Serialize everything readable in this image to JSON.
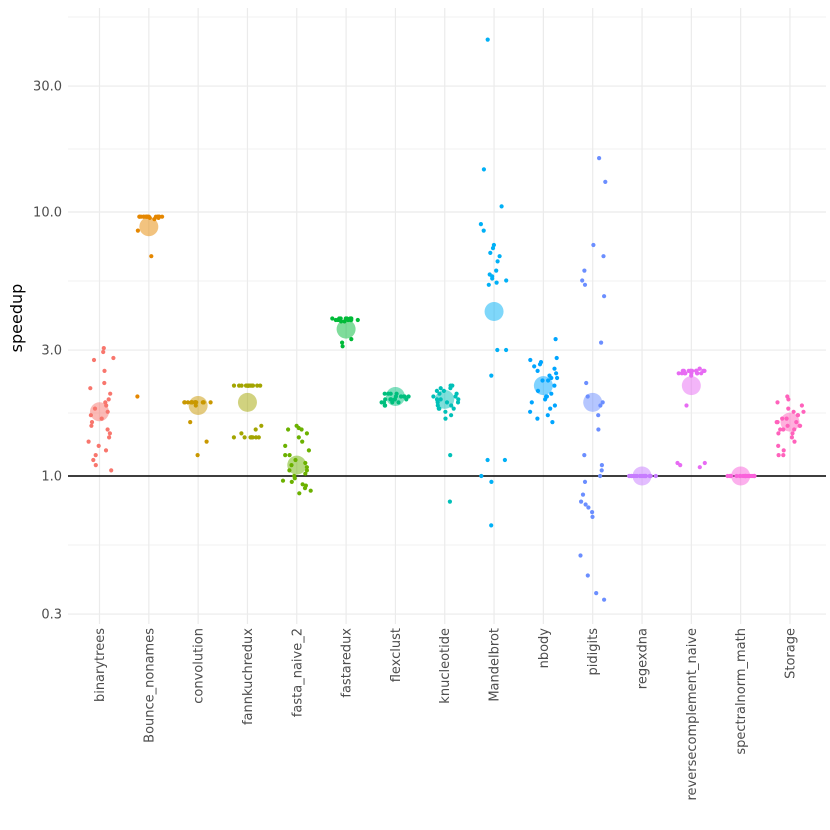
{
  "chart_data": {
    "type": "scatter",
    "title": "",
    "xlabel": "",
    "ylabel": "speedup",
    "y_scale": "log10",
    "ylim": [
      0.3,
      50
    ],
    "y_ticks": [
      0.3,
      1.0,
      3.0,
      10.0,
      30.0
    ],
    "y_tick_labels": [
      "0.3",
      "1.0",
      "3.0",
      "10.0",
      "30.0"
    ],
    "reference_line": 1.0,
    "grid": true,
    "legend": "none",
    "categories": [
      "binarytrees",
      "Bounce_nonames",
      "convolution",
      "fannkuchredux",
      "fasta_naive_2",
      "fastaredux",
      "flexclust",
      "knucleotide",
      "Mandelbrot",
      "nbody",
      "pidigits",
      "regexdna",
      "reversecomplement_naive",
      "spectralnorm_math",
      "Storage"
    ],
    "series": [
      {
        "name": "binarytrees",
        "color": "#F8766D",
        "mean": 1.75,
        "points": [
          3.05,
          2.75,
          2.95,
          2.8,
          2.5,
          2.25,
          2.15,
          2.05,
          1.9,
          1.95,
          1.85,
          1.8,
          1.75,
          1.7,
          1.65,
          1.6,
          1.55,
          1.5,
          1.45,
          1.4,
          1.35,
          1.3,
          1.25,
          1.2,
          1.15,
          1.1,
          1.05
        ]
      },
      {
        "name": "Bounce_nonames",
        "color": "#E58700",
        "mean": 8.8,
        "points": [
          9.6,
          9.6,
          9.6,
          9.6,
          9.6,
          9.6,
          9.6,
          9.6,
          9.6,
          9.6,
          9.6,
          9.6,
          9.6,
          9.6,
          9.6,
          9.6,
          9.6,
          9.5,
          9.5,
          9.4,
          8.5,
          6.8,
          2.0
        ]
      },
      {
        "name": "convolution",
        "color": "#C99800",
        "mean": 1.85,
        "points": [
          1.9,
          1.9,
          1.9,
          1.9,
          1.9,
          1.9,
          1.9,
          1.9,
          1.9,
          1.9,
          1.9,
          1.9,
          1.9,
          1.9,
          1.9,
          1.9,
          1.85,
          1.6,
          1.35,
          1.2
        ]
      },
      {
        "name": "fannkuchredux",
        "color": "#A3A500",
        "mean": 1.9,
        "points": [
          2.2,
          2.2,
          2.2,
          2.2,
          2.2,
          2.2,
          2.2,
          2.2,
          2.2,
          2.2,
          2.2,
          2.2,
          2.2,
          2.2,
          1.4,
          1.4,
          1.4,
          1.4,
          1.4,
          1.4,
          1.4,
          1.4,
          1.45,
          1.5,
          1.55
        ]
      },
      {
        "name": "fasta_naive_2",
        "color": "#6BB100",
        "mean": 1.1,
        "points": [
          1.55,
          1.5,
          1.52,
          1.5,
          1.45,
          1.4,
          1.35,
          1.3,
          1.25,
          1.2,
          1.2,
          1.15,
          1.12,
          1.1,
          1.08,
          1.05,
          1.02,
          1.0,
          0.98,
          0.96,
          0.95,
          0.93,
          0.92,
          0.9,
          0.88,
          0.86,
          1.05
        ]
      },
      {
        "name": "fastaredux",
        "color": "#00BA38",
        "mean": 3.6,
        "points": [
          3.95,
          3.95,
          3.95,
          3.95,
          3.95,
          3.95,
          3.95,
          3.95,
          3.9,
          3.9,
          3.9,
          3.9,
          3.9,
          3.9,
          3.9,
          3.85,
          3.85,
          3.3,
          3.2,
          3.1
        ]
      },
      {
        "name": "flexclust",
        "color": "#00BF7D",
        "mean": 2.0,
        "points": [
          2.05,
          2.05,
          2.05,
          2.05,
          2.0,
          2.0,
          2.0,
          2.0,
          2.0,
          1.95,
          1.95,
          1.95,
          1.95,
          1.95,
          1.95,
          1.9,
          1.9,
          1.9,
          1.9,
          1.85,
          1.85,
          1.85
        ]
      },
      {
        "name": "knucleotide",
        "color": "#00C0B8",
        "mean": 1.95,
        "points": [
          2.2,
          2.2,
          2.15,
          2.15,
          2.1,
          2.1,
          2.05,
          2.05,
          2.0,
          2.0,
          1.95,
          1.95,
          1.95,
          1.9,
          1.9,
          1.9,
          1.85,
          1.85,
          1.8,
          1.8,
          1.8,
          1.75,
          1.7,
          1.65,
          1.2,
          0.8
        ]
      },
      {
        "name": "Mandelbrot",
        "color": "#00B0F6",
        "mean": 4.2,
        "points": [
          45.0,
          14.5,
          10.5,
          9.0,
          8.5,
          7.5,
          7.3,
          7.0,
          6.8,
          6.5,
          6.0,
          5.8,
          5.7,
          5.6,
          5.4,
          5.3,
          5.5,
          3.0,
          3.0,
          2.4,
          1.15,
          1.15,
          1.0,
          0.95,
          0.65
        ]
      },
      {
        "name": "nbody",
        "color": "#00A5FF",
        "mean": 2.2,
        "points": [
          3.3,
          2.8,
          2.75,
          2.7,
          2.65,
          2.6,
          2.55,
          2.5,
          2.45,
          2.4,
          2.35,
          2.35,
          2.3,
          2.3,
          2.2,
          2.1,
          2.05,
          2.0,
          2.0,
          1.95,
          1.9,
          1.85,
          1.8,
          1.75,
          1.7,
          1.65,
          1.6
        ]
      },
      {
        "name": "pidigits",
        "color": "#6B8EFF",
        "mean": 1.9,
        "points": [
          16.0,
          13.0,
          7.5,
          6.8,
          6.0,
          5.5,
          5.3,
          4.8,
          3.2,
          2.25,
          2.0,
          1.9,
          1.85,
          1.7,
          1.5,
          1.2,
          1.1,
          1.05,
          1.0,
          0.95,
          0.85,
          0.8,
          0.78,
          0.76,
          0.73,
          0.7,
          0.5,
          0.42,
          0.36,
          0.34
        ]
      },
      {
        "name": "regexdna",
        "color": "#C77CFF",
        "mean": 1.0,
        "points": [
          1.0,
          1.0,
          1.0,
          1.0,
          1.0,
          1.0,
          1.0,
          1.0,
          1.0,
          1.0,
          1.0,
          1.0,
          1.0,
          1.0,
          1.0,
          1.0,
          1.0,
          1.0,
          1.0,
          1.0
        ]
      },
      {
        "name": "reversecomplement_naive",
        "color": "#E76BF3",
        "mean": 2.2,
        "points": [
          2.55,
          2.55,
          2.5,
          2.5,
          2.5,
          2.5,
          2.5,
          2.5,
          2.5,
          2.5,
          2.5,
          2.5,
          2.5,
          2.45,
          2.45,
          2.45,
          2.45,
          2.45,
          2.45,
          2.45,
          2.45,
          2.4,
          1.85,
          1.12,
          1.1,
          1.12,
          1.08
        ]
      },
      {
        "name": "spectralnorm_math",
        "color": "#FA62DB",
        "mean": 1.0,
        "points": [
          1.0,
          1.0,
          1.0,
          1.0,
          1.0,
          1.0,
          1.0,
          1.0,
          1.0,
          1.0,
          1.0,
          1.0,
          1.0,
          1.0,
          1.0,
          1.0,
          1.0,
          1.0,
          1.0,
          1.0
        ]
      },
      {
        "name": "Storage",
        "color": "#FF62BC",
        "mean": 1.6,
        "points": [
          2.0,
          1.95,
          1.9,
          1.85,
          1.8,
          1.75,
          1.75,
          1.7,
          1.7,
          1.65,
          1.65,
          1.6,
          1.6,
          1.6,
          1.55,
          1.55,
          1.55,
          1.5,
          1.5,
          1.5,
          1.45,
          1.45,
          1.4,
          1.35,
          1.3,
          1.25,
          1.2,
          1.2
        ]
      }
    ]
  }
}
